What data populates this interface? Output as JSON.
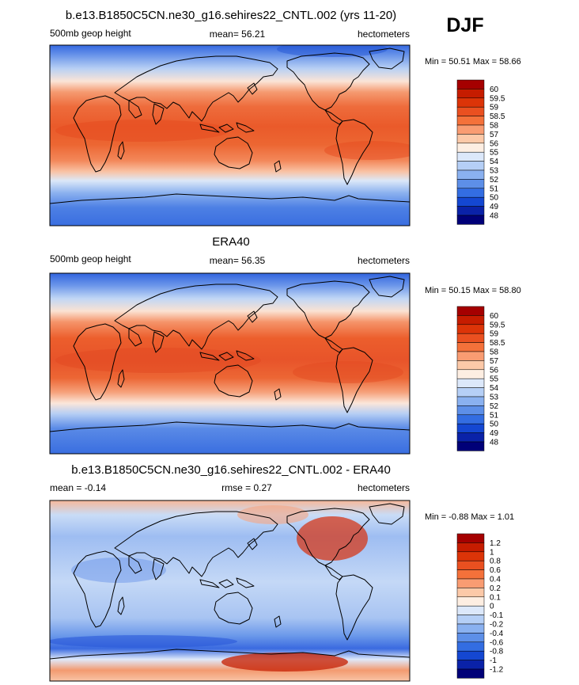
{
  "season": "DJF",
  "chart_data": [
    {
      "type": "heatmap",
      "title": "b.e13.B1850C5CN.ne30_g16.sehires22_CNTL.002 (yrs 11-20)",
      "left_label": "500mb geop height",
      "center_label": "mean=  56.21",
      "right_label": "hectometers",
      "minmax_label": "Min =  50.51 Max =  58.66",
      "min": 50.51,
      "max": 58.66,
      "mean": 56.21,
      "units": "hectometers",
      "colorbar_levels": [
        "60",
        "59.5",
        "59",
        "58.5",
        "58",
        "57",
        "56",
        "55",
        "54",
        "53",
        "52",
        "51",
        "50",
        "49",
        "48"
      ],
      "colorbar_colors": [
        "#a50000",
        "#c61c00",
        "#dc3408",
        "#ea5020",
        "#f4713a",
        "#f99c72",
        "#fcc9a8",
        "#fdeee2",
        "#dce8fa",
        "#b5cff6",
        "#8ab1f0",
        "#5d8fe8",
        "#336de2",
        "#1447d2",
        "#0a22a8",
        "#000078"
      ]
    },
    {
      "type": "heatmap",
      "title": "ERA40",
      "left_label": "500mb geop height",
      "center_label": "mean=  56.35",
      "right_label": "hectometers",
      "minmax_label": "Min =  50.15 Max =  58.80",
      "min": 50.15,
      "max": 58.8,
      "mean": 56.35,
      "units": "hectometers",
      "colorbar_levels": [
        "60",
        "59.5",
        "59",
        "58.5",
        "58",
        "57",
        "56",
        "55",
        "54",
        "53",
        "52",
        "51",
        "50",
        "49",
        "48"
      ],
      "colorbar_colors": [
        "#a50000",
        "#c61c00",
        "#dc3408",
        "#ea5020",
        "#f4713a",
        "#f99c72",
        "#fcc9a8",
        "#fdeee2",
        "#dce8fa",
        "#b5cff6",
        "#8ab1f0",
        "#5d8fe8",
        "#336de2",
        "#1447d2",
        "#0a22a8",
        "#000078"
      ]
    },
    {
      "type": "heatmap",
      "title": "b.e13.B1850C5CN.ne30_g16.sehires22_CNTL.002 - ERA40",
      "left_label": "mean =  -0.14",
      "center_label": "rmse =   0.27",
      "right_label": "hectometers",
      "minmax_label": "Min =  -0.88 Max =   1.01",
      "min": -0.88,
      "max": 1.01,
      "mean": -0.14,
      "rmse": 0.27,
      "units": "hectometers",
      "colorbar_levels": [
        "1.2",
        "1",
        "0.8",
        "0.6",
        "0.4",
        "0.2",
        "0.1",
        "0",
        "-0.1",
        "-0.2",
        "-0.4",
        "-0.6",
        "-0.8",
        "-1",
        "-1.2"
      ],
      "colorbar_colors": [
        "#a50000",
        "#c61c00",
        "#dc3408",
        "#ea5020",
        "#f4713a",
        "#f99c72",
        "#fcc9a8",
        "#fdeee2",
        "#dce8fa",
        "#b5cff6",
        "#8ab1f0",
        "#5d8fe8",
        "#336de2",
        "#1447d2",
        "#0a22a8",
        "#000078"
      ]
    }
  ]
}
